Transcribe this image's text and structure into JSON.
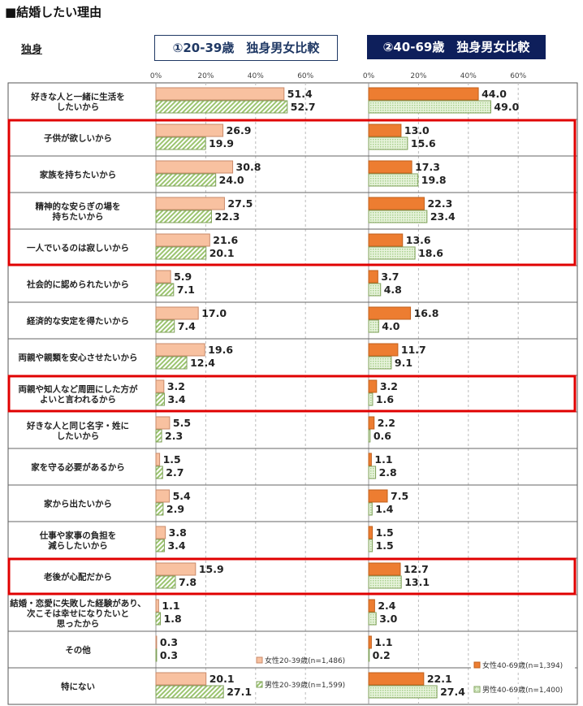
{
  "title": "■結婚したい理由",
  "group_label": "独身",
  "panel_titles": [
    "①20-39歳　独身男女比較",
    "②40-69歳　独身男女比較"
  ],
  "colors": {
    "female_young": "#F8C1A0",
    "male_young": "#9BC46F",
    "female_old": "#ED7D31",
    "male_old": "#A9D18E",
    "highlight": "#E00000"
  },
  "chart_data": {
    "type": "bar",
    "orientation": "horizontal",
    "xlim": [
      0,
      60
    ],
    "x_ticks": [
      "0%",
      "20%",
      "40%",
      "60%"
    ],
    "categories": [
      "好きな人と一緒に生活を\nしたいから",
      "子供が欲しいから",
      "家族を持ちたいから",
      "精神的な安らぎの場を\n持ちたいから",
      "一人でいるのは寂しいから",
      "社会的に認められたいから",
      "経済的な安定を得たいから",
      "両親や親類を安心させたいから",
      "両親や知人など周囲にした方が\nよいと言われるから",
      "好きな人と同じ名字・姓に\nしたいから",
      "家を守る必要があるから",
      "家から出たいから",
      "仕事や家事の負担を\n減らしたいから",
      "老後が心配だから",
      "結婚・恋愛に失敗した経験があり、\n次こそは幸せになりたいと\n思ったから",
      "その他",
      "特にない"
    ],
    "highlighted_groups": [
      [
        1,
        4
      ],
      [
        8,
        8
      ],
      [
        13,
        13
      ]
    ],
    "panels": [
      {
        "series": [
          {
            "name": "女性20-39歳(n=1,486)",
            "values": [
              51.4,
              26.9,
              30.8,
              27.5,
              21.6,
              5.9,
              17.0,
              19.6,
              3.2,
              5.5,
              1.5,
              5.4,
              3.8,
              15.9,
              1.1,
              0.3,
              20.1
            ]
          },
          {
            "name": "男性20-39歳(n=1,599)",
            "values": [
              52.7,
              19.9,
              24.0,
              22.3,
              20.1,
              7.1,
              7.4,
              12.4,
              3.4,
              2.3,
              2.7,
              2.9,
              3.4,
              7.8,
              1.8,
              0.3,
              27.1
            ]
          }
        ]
      },
      {
        "series": [
          {
            "name": "女性40-69歳(n=1,394)",
            "values": [
              44.0,
              13.0,
              17.3,
              22.3,
              13.6,
              3.7,
              16.8,
              11.7,
              3.2,
              2.2,
              1.1,
              7.5,
              1.5,
              12.7,
              2.4,
              1.1,
              22.1
            ]
          },
          {
            "name": "男性40-69歳(n=1,400)",
            "values": [
              49.0,
              15.6,
              19.8,
              23.4,
              18.6,
              4.8,
              4.0,
              9.1,
              1.6,
              0.6,
              2.8,
              1.4,
              1.5,
              13.1,
              3.0,
              0.2,
              27.4
            ]
          }
        ]
      }
    ]
  }
}
